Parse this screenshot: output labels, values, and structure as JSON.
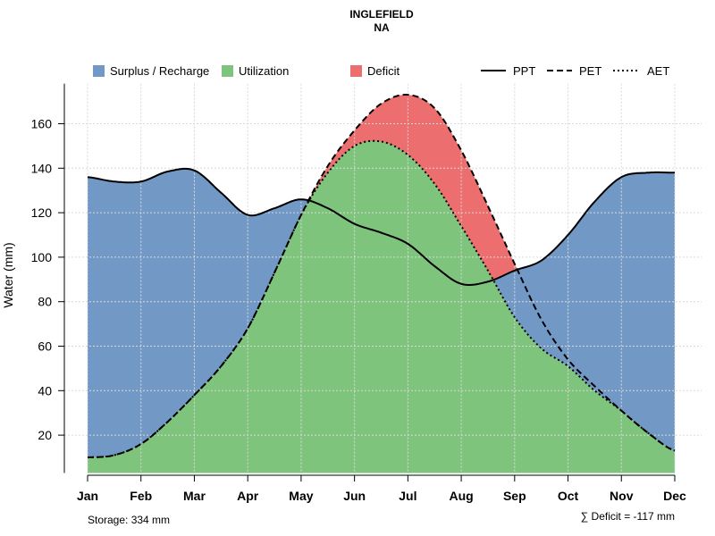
{
  "chart_data": {
    "type": "area",
    "title": "INGLEFIELD",
    "subtitle": "NA",
    "ylabel": "Water (mm)",
    "xlabel": "",
    "ylim": [
      3,
      178
    ],
    "yticks": [
      20,
      40,
      60,
      80,
      100,
      120,
      140,
      160
    ],
    "grid": true,
    "categories": [
      "Jan",
      "Feb",
      "Mar",
      "Apr",
      "May",
      "Jun",
      "Jul",
      "Aug",
      "Sep",
      "Oct",
      "Nov",
      "Dec"
    ],
    "x": [
      1,
      1.5,
      2,
      2.5,
      3,
      3.5,
      4,
      4.5,
      5,
      5.5,
      6,
      6.5,
      7,
      7.5,
      8,
      8.5,
      9,
      9.5,
      10,
      10.5,
      11,
      11.5,
      12
    ],
    "series": [
      {
        "name": "PPT",
        "style": "solid",
        "values": [
          136,
          134,
          134,
          138.5,
          139,
          129,
          119,
          122,
          126,
          122,
          115,
          111,
          106,
          96,
          88,
          89,
          94,
          98.5,
          110,
          125,
          136,
          138,
          138
        ]
      },
      {
        "name": "PET",
        "style": "dashed",
        "values": [
          10,
          11,
          16,
          26,
          38,
          51,
          68,
          93,
          119,
          141,
          157,
          169,
          173,
          167,
          148,
          123,
          97,
          72,
          54,
          42,
          31,
          21,
          13
        ]
      },
      {
        "name": "AET",
        "style": "dotted",
        "values": [
          10,
          11,
          16,
          26,
          38,
          51,
          68,
          93,
          119,
          138,
          150,
          152,
          146,
          133,
          114,
          94,
          73,
          59,
          51,
          40,
          31,
          21,
          13
        ]
      }
    ],
    "legend": {
      "position": "top",
      "areas": [
        {
          "label": "Surplus / Recharge",
          "color": "#7299c6"
        },
        {
          "label": "Utilization",
          "color": "#7fc47d"
        },
        {
          "label": "Deficit",
          "color": "#ec6e6e"
        }
      ],
      "lines": [
        {
          "label": "PPT",
          "style": "solid"
        },
        {
          "label": "PET",
          "style": "dashed"
        },
        {
          "label": "AET",
          "style": "dotted"
        }
      ]
    },
    "colors": {
      "surplus": "#7299c6",
      "utilization": "#7fc47d",
      "deficit": "#ec6e6e",
      "line": "#000000",
      "grid": "#d9d9d9"
    }
  },
  "footer": {
    "storage": "Storage: 334 mm",
    "deficit": "∑ Deficit = -117 mm"
  }
}
